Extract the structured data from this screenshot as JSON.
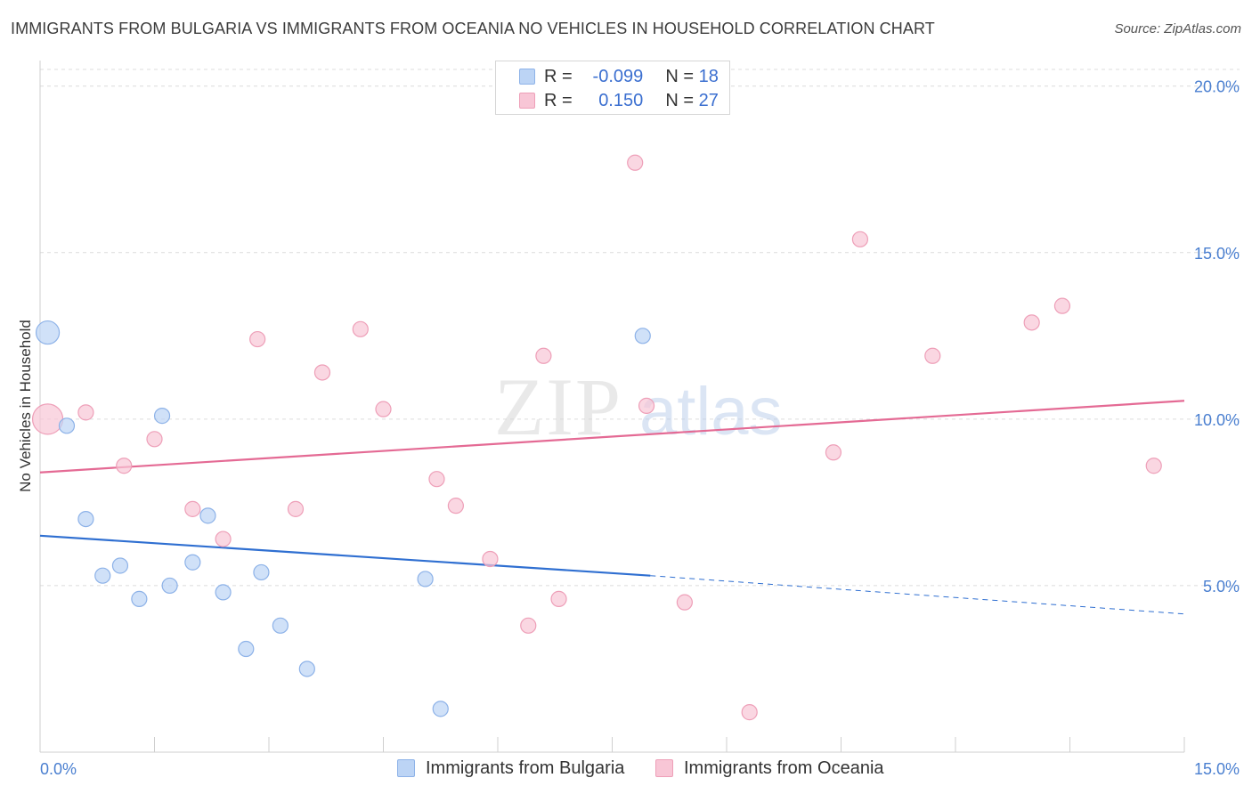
{
  "title": "IMMIGRANTS FROM BULGARIA VS IMMIGRANTS FROM OCEANIA NO VEHICLES IN HOUSEHOLD CORRELATION CHART",
  "source": "Source: ZipAtlas.com",
  "watermark": {
    "zip": "ZIP",
    "atlas": "atlas"
  },
  "legend": {
    "r_label": "R =",
    "n_label": "N =",
    "bulgaria": {
      "r": "-0.099",
      "n": "18"
    },
    "oceania": {
      "r": "0.150",
      "n": "27"
    }
  },
  "colors": {
    "bulgaria_fill": "#bcd4f5",
    "bulgaria_stroke": "#8db2e8",
    "bulgaria_line": "#2f6fd1",
    "oceania_fill": "#f8c6d6",
    "oceania_stroke": "#ee9fb8",
    "oceania_line": "#e46a94",
    "tick_text": "#4a7fd0",
    "grid": "#dcdcdc"
  },
  "chart_data": {
    "type": "scatter",
    "title": "IMMIGRANTS FROM BULGARIA VS IMMIGRANTS FROM OCEANIA NO VEHICLES IN HOUSEHOLD CORRELATION CHART",
    "xlabel": "",
    "ylabel": "No Vehicles in Household",
    "xlim": [
      0,
      15
    ],
    "ylim": [
      0,
      20.5
    ],
    "x_tick_labels": [
      "0.0%",
      "15.0%"
    ],
    "y_ticks": [
      5,
      10,
      15,
      20
    ],
    "y_tick_labels": [
      "5.0%",
      "10.0%",
      "15.0%",
      "20.0%"
    ],
    "grid": true,
    "legend_position": "top-center",
    "series": [
      {
        "name": "Immigrants from Bulgaria",
        "points": [
          [
            0.1,
            12.6
          ],
          [
            0.35,
            9.8
          ],
          [
            0.6,
            7.0
          ],
          [
            0.82,
            5.3
          ],
          [
            1.05,
            5.6
          ],
          [
            1.3,
            4.6
          ],
          [
            1.6,
            10.1
          ],
          [
            1.7,
            5.0
          ],
          [
            2.0,
            5.7
          ],
          [
            2.2,
            7.1
          ],
          [
            2.4,
            4.8
          ],
          [
            2.7,
            3.1
          ],
          [
            2.9,
            5.4
          ],
          [
            3.15,
            3.8
          ],
          [
            3.5,
            2.5
          ],
          [
            5.05,
            5.2
          ],
          [
            5.25,
            1.3
          ],
          [
            7.9,
            12.5
          ]
        ],
        "trend": {
          "x": [
            0,
            8.0
          ],
          "y": [
            6.5,
            5.3
          ]
        },
        "trend_extension": {
          "x": [
            8.0,
            15.0
          ],
          "y": [
            5.3,
            4.15
          ]
        }
      },
      {
        "name": "Immigrants from Oceania",
        "points": [
          [
            0.1,
            10.0
          ],
          [
            0.6,
            10.2
          ],
          [
            1.1,
            8.6
          ],
          [
            1.5,
            9.4
          ],
          [
            2.0,
            7.3
          ],
          [
            2.4,
            6.4
          ],
          [
            2.85,
            12.4
          ],
          [
            3.35,
            7.3
          ],
          [
            3.7,
            11.4
          ],
          [
            4.2,
            12.7
          ],
          [
            4.5,
            10.3
          ],
          [
            5.2,
            8.2
          ],
          [
            5.45,
            7.4
          ],
          [
            5.9,
            5.8
          ],
          [
            6.4,
            3.8
          ],
          [
            6.6,
            11.9
          ],
          [
            6.8,
            4.6
          ],
          [
            7.8,
            17.7
          ],
          [
            7.95,
            10.4
          ],
          [
            8.45,
            4.5
          ],
          [
            9.3,
            1.2
          ],
          [
            10.4,
            9.0
          ],
          [
            10.75,
            15.4
          ],
          [
            11.7,
            11.9
          ],
          [
            13.0,
            12.9
          ],
          [
            13.4,
            13.4
          ],
          [
            14.6,
            8.6
          ]
        ],
        "trend": {
          "x": [
            0,
            15.0
          ],
          "y": [
            8.4,
            10.55
          ]
        }
      }
    ]
  },
  "bottom_legend": {
    "bulgaria": "Immigrants from Bulgaria",
    "oceania": "Immigrants from Oceania"
  }
}
